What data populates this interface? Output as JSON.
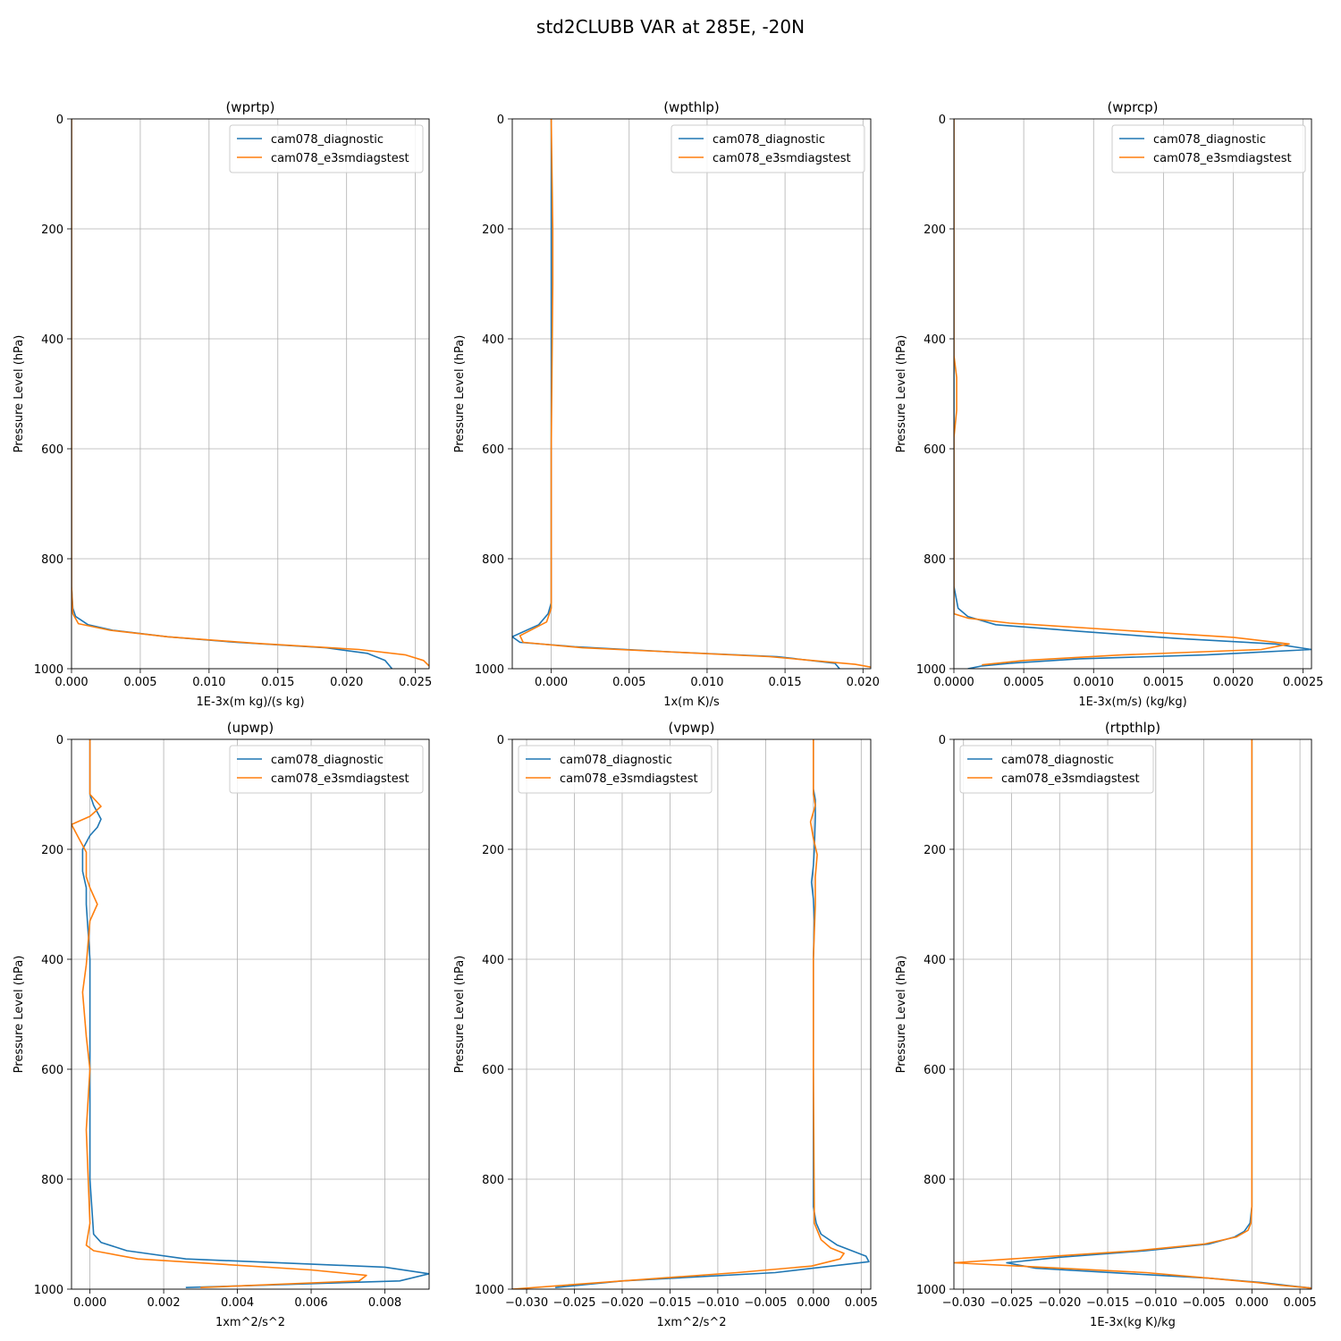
{
  "figure": {
    "title": "std2CLUBB VAR at 285E, -20N"
  },
  "chart_data": [
    {
      "type": "line",
      "title": "(wprtp)",
      "xlabel": "1E-3x(m kg)/(s kg)",
      "ylabel": "Pressure Level (hPa)",
      "xlim": [
        0,
        0.026
      ],
      "ylim": [
        1000,
        0
      ],
      "xticks": [
        0,
        0.005,
        0.01,
        0.015,
        0.02,
        0.025
      ],
      "xtick_labels": [
        "0.000",
        "0.005",
        "0.010",
        "0.015",
        "0.020",
        "0.025"
      ],
      "yticks": [
        0,
        200,
        400,
        600,
        800,
        1000
      ],
      "ytick_labels": [
        "0",
        "200",
        "400",
        "600",
        "800",
        "1000"
      ],
      "grid": true,
      "legend_loc": "upper right",
      "series": [
        {
          "name": "cam078_diagnostic",
          "color": "#1f77b4",
          "x": [
            0,
            0,
            0,
            0,
            0,
            0,
            0.0001,
            0.0003,
            0.0012,
            0.003,
            0.007,
            0.012,
            0.0185,
            0.0215,
            0.0228,
            0.0233
          ],
          "y": [
            0,
            200,
            400,
            600,
            800,
            850,
            890,
            905,
            920,
            930,
            942,
            952,
            962,
            972,
            985,
            1000
          ]
        },
        {
          "name": "cam078_e3smdiagstest",
          "color": "#ff7f0e",
          "x": [
            0,
            0,
            0,
            0,
            0,
            0,
            0.0001,
            0.0005,
            0.0028,
            0.007,
            0.0135,
            0.0209,
            0.0243,
            0.0256,
            0.026
          ],
          "y": [
            0,
            200,
            400,
            500,
            600,
            850,
            900,
            918,
            930,
            942,
            954,
            965,
            975,
            985,
            995
          ]
        }
      ]
    },
    {
      "type": "line",
      "title": "(wpthlp)",
      "xlabel": "1x(m K)/s",
      "ylabel": "Pressure Level (hPa)",
      "xlim": [
        -0.0025,
        0.0205
      ],
      "ylim": [
        1000,
        0
      ],
      "xticks": [
        0,
        0.005,
        0.01,
        0.015,
        0.02
      ],
      "xtick_labels": [
        "0.000",
        "0.005",
        "0.010",
        "0.015",
        "0.020"
      ],
      "yticks": [
        0,
        200,
        400,
        600,
        800,
        1000
      ],
      "ytick_labels": [
        "0",
        "200",
        "400",
        "600",
        "800",
        "1000"
      ],
      "grid": true,
      "legend_loc": "upper right",
      "series": [
        {
          "name": "cam078_diagnostic",
          "color": "#1f77b4",
          "x": [
            0,
            0,
            0,
            0,
            0,
            -0.0002,
            -0.0008,
            -0.0025,
            -0.002,
            0.0015,
            0.008,
            0.0145,
            0.0182,
            0.0185
          ],
          "y": [
            0,
            200,
            400,
            600,
            880,
            900,
            920,
            942,
            952,
            960,
            970,
            978,
            990,
            1000
          ]
        },
        {
          "name": "cam078_e3smdiagstest",
          "color": "#ff7f0e",
          "x": [
            0,
            0.0001,
            0.0001,
            0,
            0,
            -0.0003,
            -0.002,
            -0.0018,
            0.002,
            0.008,
            0.014,
            0.0195,
            0.0205
          ],
          "y": [
            0,
            200,
            300,
            600,
            890,
            915,
            940,
            952,
            962,
            970,
            978,
            992,
            997
          ]
        }
      ]
    },
    {
      "type": "line",
      "title": "(wprcp)",
      "xlabel": "1E-3x(m/s) (kg/kg)",
      "ylabel": "Pressure Level (hPa)",
      "xlim": [
        0,
        0.00256
      ],
      "ylim": [
        1000,
        0
      ],
      "xticks": [
        0,
        0.0005,
        0.001,
        0.0015,
        0.002,
        0.0025
      ],
      "xtick_labels": [
        "0.0000",
        "0.0005",
        "0.0010",
        "0.0015",
        "0.0020",
        "0.0025"
      ],
      "yticks": [
        0,
        200,
        400,
        600,
        800,
        1000
      ],
      "ytick_labels": [
        "0",
        "200",
        "400",
        "600",
        "800",
        "1000"
      ],
      "grid": true,
      "legend_loc": "upper right",
      "series": [
        {
          "name": "cam078_diagnostic",
          "color": "#1f77b4",
          "x": [
            0,
            0,
            3e-05,
            0.0001,
            0.0003,
            0.0009,
            0.0016,
            0.0023,
            0.00256,
            0.0018,
            0.0009,
            0.0004,
            0.0002,
            0.0001
          ],
          "y": [
            0,
            850,
            890,
            905,
            920,
            932,
            945,
            955,
            965,
            975,
            982,
            990,
            995,
            1000
          ]
        },
        {
          "name": "cam078_e3smdiagstest",
          "color": "#ff7f0e",
          "x": [
            0,
            0,
            2e-05,
            2e-05,
            0,
            0,
            0.0001,
            0.0004,
            0.0012,
            0.002,
            0.0024,
            0.0022,
            0.0012,
            0.0005,
            0.0002
          ],
          "y": [
            0,
            430,
            470,
            530,
            580,
            900,
            908,
            917,
            930,
            943,
            955,
            965,
            975,
            985,
            993
          ]
        }
      ]
    },
    {
      "type": "line",
      "title": "(upwp)",
      "xlabel": "1xm^2/s^2",
      "ylabel": "Pressure Level (hPa)",
      "xlim": [
        -0.0005,
        0.0092
      ],
      "ylim": [
        1000,
        0
      ],
      "xticks": [
        0,
        0.002,
        0.004,
        0.006,
        0.008
      ],
      "xtick_labels": [
        "0.000",
        "0.002",
        "0.004",
        "0.006",
        "0.008"
      ],
      "yticks": [
        0,
        200,
        400,
        600,
        800,
        1000
      ],
      "ytick_labels": [
        "0",
        "200",
        "400",
        "600",
        "800",
        "1000"
      ],
      "grid": true,
      "legend_loc": "upper right",
      "series": [
        {
          "name": "cam078_diagnostic",
          "color": "#1f77b4",
          "x": [
            0,
            0,
            0.0001,
            0.0003,
            0.0002,
            0,
            -0.0002,
            -0.0002,
            -0.0001,
            -0.0001,
            0,
            0,
            0,
            0,
            0,
            0.0001,
            0.0003,
            0.001,
            0.0026,
            0.008,
            0.0092,
            0.0084,
            0.0026
          ],
          "y": [
            0,
            100,
            120,
            145,
            160,
            175,
            200,
            240,
            270,
            300,
            400,
            450,
            500,
            600,
            800,
            900,
            915,
            930,
            945,
            960,
            972,
            985,
            997
          ]
        },
        {
          "name": "cam078_e3smdiagstest",
          "color": "#ff7f0e",
          "x": [
            0,
            0,
            0.0003,
            0,
            -0.0005,
            -0.0003,
            -0.0001,
            -0.0001,
            0,
            0.0002,
            0,
            -0.0001,
            -0.0002,
            -0.0001,
            0,
            -0.0001,
            0,
            -0.0001,
            0.0001,
            0.0013,
            0.006,
            0.0075,
            0.0073,
            0.003
          ],
          "y": [
            0,
            100,
            122,
            140,
            155,
            180,
            205,
            250,
            270,
            300,
            330,
            410,
            460,
            540,
            600,
            710,
            880,
            920,
            930,
            945,
            965,
            975,
            985,
            997
          ]
        }
      ]
    },
    {
      "type": "line",
      "title": "(vpwp)",
      "xlabel": "1xm^2/s^2",
      "ylabel": "Pressure Level (hPa)",
      "xlim": [
        -0.0315,
        0.006
      ],
      "ylim": [
        1000,
        0
      ],
      "xticks": [
        -0.03,
        -0.025,
        -0.02,
        -0.015,
        -0.01,
        -0.005,
        0,
        0.005
      ],
      "xtick_labels": [
        "−0.030",
        "−0.025",
        "−0.020",
        "−0.015",
        "−0.010",
        "−0.005",
        "0.000",
        "0.005"
      ],
      "yticks": [
        0,
        200,
        400,
        600,
        800,
        1000
      ],
      "ytick_labels": [
        "0",
        "200",
        "400",
        "600",
        "800",
        "1000"
      ],
      "grid": true,
      "legend_loc": "upper left",
      "series": [
        {
          "name": "cam078_diagnostic",
          "color": "#1f77b4",
          "x": [
            0,
            0,
            0.0002,
            0.0002,
            0.0001,
            0,
            -0.0002,
            0,
            0.0001,
            0,
            0,
            0,
            0.0003,
            0.0008,
            0.0025,
            0.0055,
            0.0058,
            -0.004,
            -0.02,
            -0.027
          ],
          "y": [
            0,
            90,
            110,
            140,
            200,
            230,
            260,
            290,
            330,
            400,
            500,
            850,
            880,
            900,
            920,
            940,
            950,
            970,
            985,
            997
          ]
        },
        {
          "name": "cam078_e3smdiagstest",
          "color": "#ff7f0e",
          "x": [
            0,
            0,
            0.0002,
            -0.0003,
            0,
            0.0004,
            0.0002,
            0.0002,
            0,
            0,
            0.0001,
            0.0008,
            0.0018,
            0.0032,
            0.0028,
            -0.0002,
            -0.008,
            -0.02,
            -0.0315
          ],
          "y": [
            0,
            100,
            120,
            150,
            180,
            210,
            250,
            300,
            400,
            600,
            880,
            910,
            925,
            935,
            945,
            958,
            970,
            985,
            1000
          ]
        }
      ]
    },
    {
      "type": "line",
      "title": "(rtpthlp)",
      "xlabel": "1E-3x(kg K)/kg",
      "ylabel": "Pressure Level (hPa)",
      "xlim": [
        -0.031,
        0.0062
      ],
      "ylim": [
        1000,
        0
      ],
      "xticks": [
        -0.03,
        -0.025,
        -0.02,
        -0.015,
        -0.01,
        -0.005,
        0,
        0.005
      ],
      "xtick_labels": [
        "−0.030",
        "−0.025",
        "−0.020",
        "−0.015",
        "−0.010",
        "−0.005",
        "0.000",
        "0.005"
      ],
      "yticks": [
        0,
        200,
        400,
        600,
        800,
        1000
      ],
      "ytick_labels": [
        "0",
        "200",
        "400",
        "600",
        "800",
        "1000"
      ],
      "grid": true,
      "legend_loc": "upper left",
      "series": [
        {
          "name": "cam078_diagnostic",
          "color": "#1f77b4",
          "x": [
            0,
            0,
            0,
            0,
            -0.0002,
            -0.0008,
            -0.0018,
            -0.0045,
            -0.011,
            -0.02,
            -0.0255,
            -0.0225,
            -0.0125,
            -0.0045,
            0.001,
            0.004,
            0.0062
          ],
          "y": [
            0,
            200,
            600,
            850,
            880,
            895,
            905,
            918,
            930,
            942,
            952,
            962,
            972,
            980,
            988,
            994,
            998
          ]
        },
        {
          "name": "cam078_e3smdiagstest",
          "color": "#ff7f0e",
          "x": [
            0,
            0,
            0,
            0,
            -0.0001,
            -0.0004,
            -0.0016,
            -0.005,
            -0.012,
            -0.025,
            -0.031,
            -0.022,
            -0.011,
            -0.0045,
            0.0005,
            0.003,
            0.0062
          ],
          "y": [
            0,
            200,
            600,
            850,
            880,
            893,
            905,
            918,
            930,
            945,
            952,
            960,
            970,
            980,
            988,
            993,
            998
          ]
        }
      ]
    }
  ]
}
